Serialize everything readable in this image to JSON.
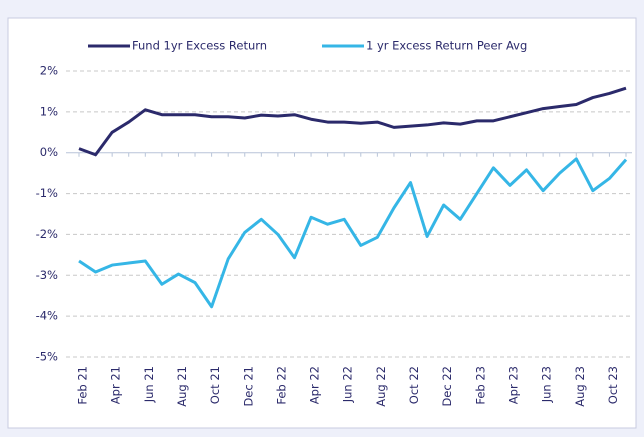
{
  "chart_data": {
    "type": "line",
    "categories": [
      "Feb 21",
      null,
      "Apr 21",
      null,
      "Jun 21",
      null,
      "Aug 21",
      null,
      "Oct 21",
      null,
      "Dec 21",
      null,
      "Feb 22",
      null,
      "Apr 22",
      null,
      "Jun 22",
      null,
      "Aug 22",
      null,
      "Oct 22",
      null,
      "Dec 22",
      null,
      "Feb 23",
      null,
      "Apr 23",
      null,
      "Jun 23",
      null,
      "Aug 23",
      null,
      "Oct 23",
      null
    ],
    "series": [
      {
        "name": "Fund 1yr Excess Return",
        "color": "#2b2a6b",
        "values": [
          0.1,
          -0.05,
          0.5,
          0.75,
          1.05,
          0.93,
          0.93,
          0.93,
          0.88,
          0.88,
          0.85,
          0.92,
          0.9,
          0.93,
          0.82,
          0.75,
          0.75,
          0.72,
          0.75,
          0.62,
          0.65,
          0.68,
          0.73,
          0.7,
          0.78,
          0.78,
          0.88,
          0.98,
          1.08,
          1.13,
          1.18,
          1.35,
          1.45,
          1.58
        ]
      },
      {
        "name": "1 yr Excess Return Peer Avg",
        "color": "#35b6e6",
        "values": [
          -2.65,
          -2.92,
          -2.75,
          -2.7,
          -2.65,
          -3.22,
          -2.97,
          -3.18,
          -3.77,
          -2.6,
          -1.95,
          -1.63,
          -2.0,
          -2.57,
          -1.58,
          -1.75,
          -1.63,
          -2.27,
          -2.07,
          -1.35,
          -0.73,
          -2.05,
          -1.28,
          -1.63,
          -1.0,
          -0.37,
          -0.8,
          -0.42,
          -0.93,
          -0.5,
          -0.15,
          -0.93,
          -0.63,
          -0.17
        ]
      }
    ],
    "ylim": [
      -5,
      2
    ],
    "yticks": [
      {
        "value": 2,
        "label": "2%"
      },
      {
        "value": 1,
        "label": "1%"
      },
      {
        "value": 0,
        "label": "0%"
      },
      {
        "value": -1,
        "label": "-1%"
      },
      {
        "value": -2,
        "label": "-2%"
      },
      {
        "value": -3,
        "label": "-3%"
      },
      {
        "value": -4,
        "label": "-4%"
      },
      {
        "value": -5,
        "label": "-5%"
      }
    ],
    "grid": true,
    "legend": "top"
  }
}
